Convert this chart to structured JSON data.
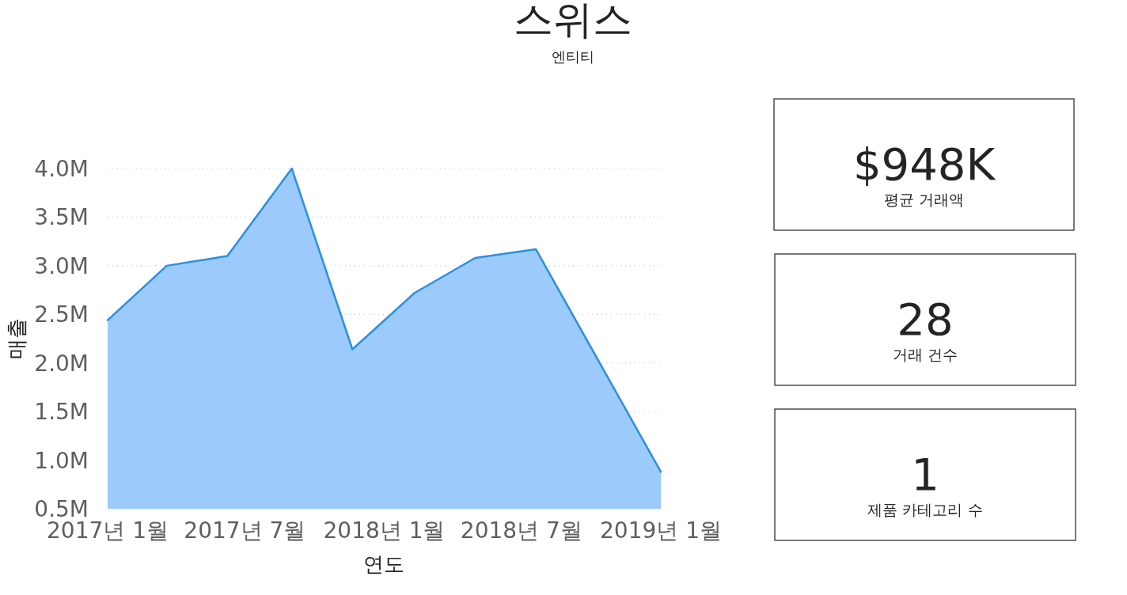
{
  "chart_data": [
    {
      "type": "area",
      "title": "스위스",
      "subtitle": "엔티티",
      "xlabel": "연도",
      "ylabel": "매출",
      "x": [
        "2017-01-01",
        "2017-03-20",
        "2017-06-08",
        "2017-09-01",
        "2017-11-20",
        "2018-02-10",
        "2018-05-01",
        "2018-07-20",
        "2019-01-01"
      ],
      "series": [
        {
          "color": "#2b8fe3",
          "values": [
            2.44,
            3.0,
            3.1,
            4.0,
            2.14,
            2.72,
            3.08,
            3.17,
            0.88
          ]
        }
      ],
      "xlim": [
        "2017-01-01",
        "2019-01-01"
      ],
      "xticks": [
        {
          "value": "2017-01-01",
          "label": "2017년 1월"
        },
        {
          "value": "2017-07-01",
          "label": "2017년 7월"
        },
        {
          "value": "2018-01-01",
          "label": "2018년 1월"
        },
        {
          "value": "2018-07-01",
          "label": "2018년 7월"
        },
        {
          "value": "2019-01-01",
          "label": "2019년 1월"
        }
      ],
      "ylim": [
        0.5,
        4.0
      ],
      "yticks": [
        {
          "value": 0.5,
          "label": "0.5M"
        },
        {
          "value": 1.0,
          "label": "1.0M"
        },
        {
          "value": 1.5,
          "label": "1.5M"
        },
        {
          "value": 2.0,
          "label": "2.0M"
        },
        {
          "value": 2.5,
          "label": "2.5M"
        },
        {
          "value": 3.0,
          "label": "3.0M"
        },
        {
          "value": 3.5,
          "label": "3.5M"
        },
        {
          "value": 4.0,
          "label": "4.0M"
        }
      ],
      "grid": "y"
    },
    {
      "type": "other",
      "title": "$948K",
      "subtitle": "평균 거래액"
    },
    {
      "type": "other",
      "title": "28",
      "subtitle": "거래 건수"
    },
    {
      "type": "other",
      "title": "1",
      "subtitle": "제품 카테고리 수"
    }
  ]
}
